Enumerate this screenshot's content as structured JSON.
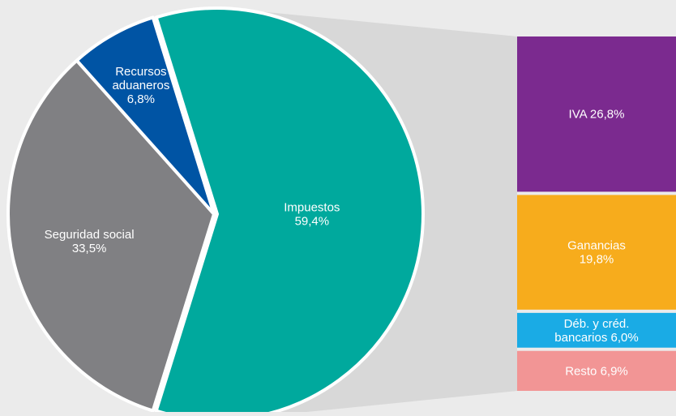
{
  "chart_data": {
    "type": "pie",
    "title": "",
    "pie": {
      "slices": [
        {
          "name": "Impuestos",
          "value": 59.4,
          "color": "#00a99d",
          "label_lines": [
            "Impuestos",
            "59,4%"
          ]
        },
        {
          "name": "Seguridad social",
          "value": 33.5,
          "color": "#808083",
          "label_lines": [
            "Seguridad social",
            "33,5%"
          ]
        },
        {
          "name": "Recursos aduaneros",
          "value": 6.8,
          "color": "#0054a4",
          "label_lines": [
            "Recursos",
            "aduaneros",
            "6,8%"
          ]
        }
      ]
    },
    "breakdown": {
      "of": "Impuestos",
      "segments": [
        {
          "name": "IVA",
          "value": 26.8,
          "color": "#7b2a8f",
          "label_lines": [
            "IVA 26,8%"
          ]
        },
        {
          "name": "Ganancias",
          "value": 19.8,
          "color": "#f7ac1c",
          "label_lines": [
            "Ganancias",
            "19,8%"
          ]
        },
        {
          "name": "Déb. y créd. bancarios",
          "value": 6.0,
          "color": "#1aabe5",
          "label_lines": [
            "Déb. y créd.",
            "bancarios 6,0%"
          ]
        },
        {
          "name": "Resto",
          "value": 6.9,
          "color": "#f29595",
          "label_lines": [
            "Resto 6,9%"
          ]
        }
      ]
    },
    "connector_color": "#d8d8d8",
    "text_color": "#ffffff"
  }
}
